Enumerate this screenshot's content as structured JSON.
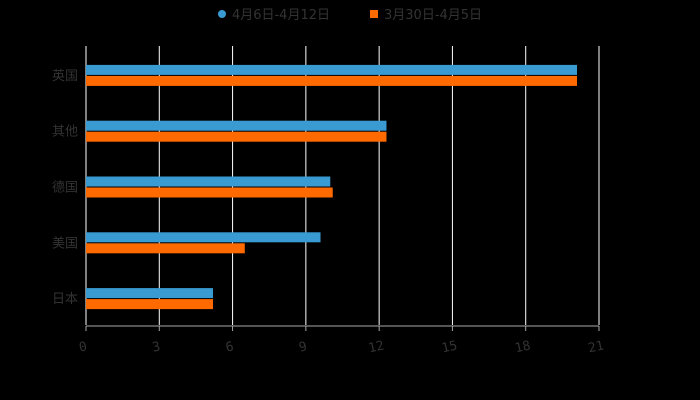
{
  "chart_data": {
    "type": "bar",
    "orientation": "horizontal",
    "title": "",
    "xlabel": "",
    "ylabel": "",
    "categories": [
      "英国",
      "其他",
      "德国",
      "美国",
      "日本"
    ],
    "series": [
      {
        "name": "4月6日-4月12日",
        "color": "#3a9bd2",
        "marker": "circle",
        "values": [
          20.1,
          12.3,
          10.0,
          9.6,
          5.2
        ]
      },
      {
        "name": "3月30日-4月5日",
        "color": "#ff6a00",
        "marker": "square",
        "values": [
          20.1,
          12.3,
          10.1,
          6.5,
          5.2
        ]
      }
    ],
    "xlim": [
      0,
      21
    ],
    "xticks": [
      0,
      3,
      6,
      9,
      12,
      15,
      18,
      21
    ],
    "grid": true,
    "legend_position": "top",
    "background": "#000000",
    "text_color": "#333333",
    "grid_color": "#ffffff"
  }
}
